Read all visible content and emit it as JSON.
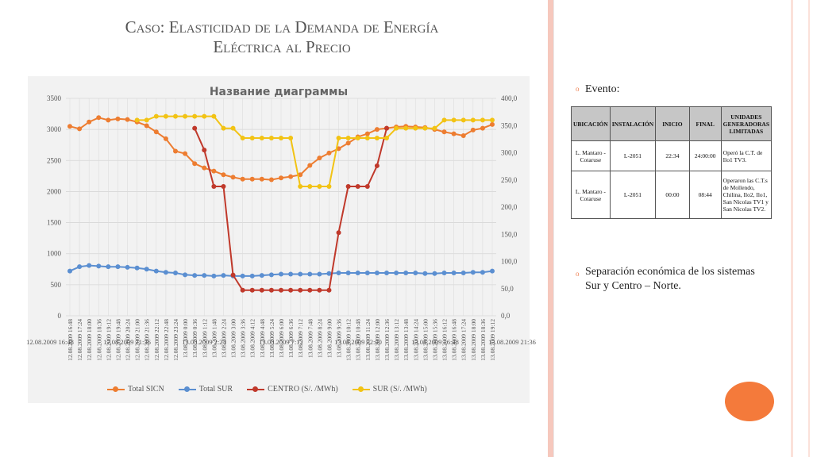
{
  "slide": {
    "title_line1": "Caso: Elasticidad de la Demanda de Energía",
    "title_line2": "Eléctrica al Precio"
  },
  "bullets": {
    "event_label": "Evento:",
    "separation": "Separación económica de los sistemas Sur y Centro – Norte."
  },
  "event_table": {
    "headers": [
      "UBICACIÓN",
      "INSTALACIÓN",
      "INICIO",
      "FINAL",
      "UNIDADES GENERADORAS LIMITADAS"
    ],
    "rows": [
      [
        "L. Mantaro - Cotaruse",
        "L-2051",
        "22:34",
        "24:00:00",
        "Operó la C.T. de Ilo1 TV3."
      ],
      [
        "L. Mantaro - Cotaruse",
        "L-2051",
        "00:00",
        "08:44",
        "Operaron las C.T.s de Mollendo, Chilina, Ilo2, Ilo1, San Nicolas TV1 y San Nicolas TV2."
      ]
    ]
  },
  "colors": {
    "total_sicn": "#ed7d31",
    "total_sur": "#5b8fd1",
    "centro": "#c0392b",
    "sur": "#f2c314",
    "accent": "#f47a3b"
  },
  "chart_data": {
    "type": "line",
    "title": "Название диаграммы",
    "y_left": {
      "ylim": [
        0,
        3500
      ],
      "ticks": [
        "0",
        "500",
        "1000",
        "1500",
        "2000",
        "2500",
        "3000",
        "3500"
      ]
    },
    "y_right": {
      "ylim": [
        0,
        400
      ],
      "ticks": [
        "0,0",
        "50,0",
        "100,0",
        "150,0",
        "200,0",
        "250,0",
        "300,0",
        "350,0",
        "400,0"
      ]
    },
    "x_range_labels": [
      "12.08.2009 16:48",
      "12.08.2009 21:36",
      "13.08.2009 2:24",
      "13.08.2009 7:12",
      "13.08.2009 12:00",
      "13.08.2009 16:48",
      "13.08.2009 21:36"
    ],
    "categories": [
      "12.08.2009 16:48",
      "12.08.2009 17:24",
      "12.08.2009 18:00",
      "12.08.2009 18:36",
      "12.08.2009 19:12",
      "12.08.2009 19:48",
      "12.08.2009 20:24",
      "12.08.2009 21:00",
      "12.08.2009 21:36",
      "12.08.2009 22:12",
      "12.08.2009 22:48",
      "12.08.2009 23:24",
      "13.08.2009 0:00",
      "13.08.2009 0:36",
      "13.08.2009 1:12",
      "13.08.2009 1:48",
      "13.08.2009 2:24",
      "13.08.2009 3:00",
      "13.08.2009 3:36",
      "13.08.2009 4:12",
      "13.08.2009 4:48",
      "13.08.2009 5:24",
      "13.08.2009 6:00",
      "13.08.2009 6:36",
      "13.08.2009 7:12",
      "13.08.2009 7:48",
      "13.08.2009 8:24",
      "13.08.2009 9:00",
      "13.08.2009 9:36",
      "13.08.2009 10:12",
      "13.08.2009 10:48",
      "13.08.2009 11:24",
      "13.08.2009 12:00",
      "13.08.2009 12:36",
      "13.08.2009 13:12",
      "13.08.2009 13:48",
      "13.08.2009 14:24",
      "13.08.2009 15:00",
      "13.08.2009 15:36",
      "13.08.2009 16:12",
      "13.08.2009 16:48",
      "13.08.2009 17:24",
      "13.08.2009 18:00",
      "13.08.2009 18:36",
      "13.08.2009 19:12"
    ],
    "series": [
      {
        "name": "Total SICN",
        "axis": "left",
        "values": [
          3050,
          3010,
          3120,
          3190,
          3150,
          3170,
          3160,
          3120,
          3060,
          2960,
          2850,
          2650,
          2610,
          2450,
          2380,
          2330,
          2270,
          2230,
          2200,
          2200,
          2200,
          2190,
          2220,
          2240,
          2270,
          2420,
          2540,
          2620,
          2690,
          2780,
          2880,
          2930,
          3000,
          3020,
          3040,
          3050,
          3040,
          3030,
          3000,
          2960,
          2930,
          2900,
          2990,
          3020,
          3080
        ]
      },
      {
        "name": "Total SUR",
        "axis": "left",
        "values": [
          720,
          790,
          810,
          800,
          790,
          790,
          780,
          770,
          750,
          720,
          700,
          690,
          660,
          650,
          650,
          640,
          650,
          640,
          640,
          640,
          650,
          660,
          670,
          670,
          670,
          670,
          670,
          680,
          690,
          690,
          690,
          690,
          690,
          690,
          690,
          690,
          690,
          680,
          680,
          690,
          690,
          690,
          700,
          700,
          720
        ]
      },
      {
        "name": "CENTRO  (S/. /MWh)",
        "axis": "right",
        "values": [
          null,
          null,
          null,
          null,
          null,
          null,
          null,
          null,
          null,
          null,
          null,
          null,
          null,
          345,
          305,
          238,
          238,
          75,
          47,
          47,
          47,
          47,
          47,
          47,
          47,
          47,
          47,
          47,
          153,
          238,
          238,
          238,
          276,
          345,
          null,
          null,
          null,
          null,
          null,
          null,
          null,
          null,
          null,
          null,
          null
        ]
      },
      {
        "name": "SUR   (S/. /MWh)",
        "axis": "right",
        "values": [
          null,
          null,
          null,
          null,
          null,
          null,
          null,
          360,
          360,
          367,
          367,
          367,
          367,
          367,
          367,
          367,
          345,
          345,
          327,
          327,
          327,
          327,
          327,
          327,
          238,
          238,
          238,
          238,
          327,
          327,
          327,
          327,
          327,
          327,
          345,
          345,
          345,
          345,
          345,
          360,
          360,
          360,
          360,
          360,
          360
        ]
      }
    ]
  }
}
